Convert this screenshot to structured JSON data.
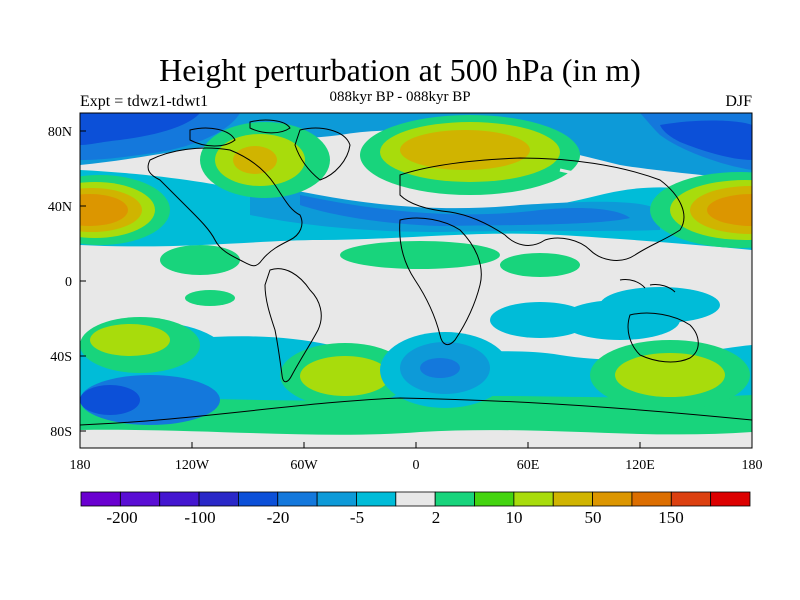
{
  "title": "Height perturbation at 500 hPa (in m)",
  "subtitle": "088kyr BP - 088kyr BP",
  "left_label": "Expt = tdwz1-tdwt1",
  "right_label": "DJF",
  "lat_ticks": [
    "80N",
    "40N",
    "0",
    "40S",
    "80S"
  ],
  "lon_ticks": [
    "180",
    "120W",
    "60W",
    "0",
    "60E",
    "120E",
    "180"
  ],
  "colorbar": {
    "colors": [
      "#6a00d0",
      "#5a0ed4",
      "#4416d0",
      "#2a28c8",
      "#0c50d8",
      "#1478dc",
      "#0d9ad8",
      "#00bcd8",
      "#e8e8e8",
      "#18d47c",
      "#44d410",
      "#a8dc0c",
      "#d0b400",
      "#dc9600",
      "#dc6e00",
      "#dc4010",
      "#dc0000"
    ],
    "labels": [
      "-200",
      "-100",
      "-20",
      "-5",
      "2",
      "10",
      "50",
      "150"
    ]
  },
  "chart_data": {
    "type": "filled-contour map",
    "field": "500 hPa geopotential height perturbation",
    "units": "m",
    "season": "DJF",
    "lon_range": [
      -180,
      180
    ],
    "lat_range": [
      -90,
      90
    ],
    "contour_levels": [
      -200,
      -100,
      -20,
      -5,
      2,
      10,
      50,
      150
    ],
    "features": [
      {
        "region": "Greenland / N Atlantic high-latitude",
        "value_range": "10 to 50"
      },
      {
        "region": "Northern Eurasia",
        "value_range": "10 to 50"
      },
      {
        "region": "N Pacific 40N (both edges)",
        "value_range": "50 to 150"
      },
      {
        "region": "N Atlantic to Central Asia 40-60N",
        "value_range": "-20 to -100"
      },
      {
        "region": "Arctic N Pacific",
        "value_range": "-20 to -100"
      },
      {
        "region": "South Atlantic 40S",
        "value_range": "-20 to -100"
      },
      {
        "region": "S Pacific / Southern Ocean",
        "value_range": "-5 to -20"
      },
      {
        "region": "Indian Ocean 40-60S",
        "value_range": "10 to 50"
      },
      {
        "region": "South Atlantic 50S west",
        "value_range": "10 to 50"
      }
    ]
  }
}
